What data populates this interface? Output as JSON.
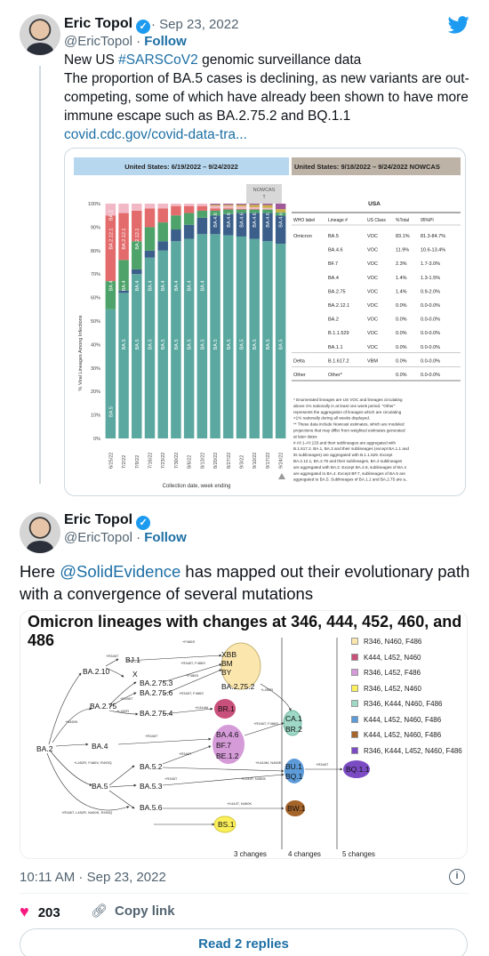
{
  "tweet1": {
    "author": "Eric Topol",
    "date": "Sep 23, 2022",
    "handle": "@EricTopol",
    "follow": "Follow",
    "line1_pre": "New US ",
    "hashtag": "#SARSCoV2",
    "line1_post": " genomic surveillance data",
    "body": "The proportion of BA.5 cases is declining, as new variants are out-competing, some of which have already been shown to have more immune escape such as BA.2.75.2 and BQ.1.1",
    "link": "covid.cdc.gov/covid-data-tra..."
  },
  "card": {
    "left_header": "United States: 6/19/2022 – 9/24/2022",
    "right_header": "United States: 9/18/2022 – 9/24/2022 NOWCAS",
    "nowcast": "NOWCAS\nT",
    "ylabel": "% Viral Lineages Among Infections",
    "xlabel": "Collection date, week ending",
    "table_title": "USA",
    "columns": [
      "WHO label",
      "Lineage #",
      "US Class",
      "%Total",
      "95%PI"
    ],
    "rows": [
      [
        "Omicron",
        "BA.5",
        "VOC",
        "83.1%",
        "81.3-84.7%"
      ],
      [
        "",
        "BA.4.6",
        "VOC",
        "11.9%",
        "10.6-13.4%"
      ],
      [
        "",
        "BF.7",
        "VOC",
        "2.3%",
        "1.7-3.0%"
      ],
      [
        "",
        "BA.4",
        "VOC",
        "1.4%",
        "1.3-1.5%"
      ],
      [
        "",
        "BA.2.75",
        "VOC",
        "1.4%",
        "0.9-2.0%"
      ],
      [
        "",
        "BA.2.12.1",
        "VOC",
        "0.0%",
        "0.0-0.0%"
      ],
      [
        "",
        "BA.2",
        "VOC",
        "0.0%",
        "0.0-0.0%"
      ],
      [
        "",
        "B.1.1.529",
        "VOC",
        "0.0%",
        "0.0-0.0%"
      ],
      [
        "",
        "BA.1.1",
        "VOC",
        "0.0%",
        "0.0-0.0%"
      ],
      [
        "Delta",
        "B.1.617.2",
        "VBM",
        "0.0%",
        "0.0-0.0%"
      ],
      [
        "Other",
        "Other*",
        "",
        "0.0%",
        "0.0-0.0%"
      ]
    ],
    "footnotes": [
      "*    Enumerated lineages are US VOC and lineages circulating",
      "above 1% nationally in at least one week period. \"Other\"",
      "represents the aggregation of lineages which are circulating",
      "<1% nationally during all weeks displayed.",
      "**   These data include Nowcast estimates, which are modeled",
      "projections that may differ from weighted estimates generated",
      "at later dates",
      "#    AY.1-AY.133 and their sublineages are aggregated with",
      "B.1.617.2. BA.1, BA.3 and their sublineages (except BA.1.1 and",
      "its sublineages) are aggregated with B.1.1.529. Except",
      "BA.2.12.1, BA.2.75 and their sublineages, BA.2 sublineages",
      "are aggregated with BA.2. Except BA.4.6, sublineages of BA.4",
      "are aggregated to BA.4. Except BF.7, sublineages of BA.5 are",
      "aggregated to BA.5. Sublineages of BA.1.1 and BA.2.75 are a.."
    ]
  },
  "chart_data": {
    "type": "bar",
    "title": "",
    "xlabel": "Collection date, week ending",
    "ylabel": "% Viral Lineages Among Infections",
    "ylim": [
      0,
      100
    ],
    "yticks": [
      "0%",
      "10%",
      "20%",
      "30%",
      "40%",
      "50%",
      "60%",
      "70%",
      "80%",
      "90%",
      "100%"
    ],
    "categories": [
      "6/25/22",
      "7/2/22",
      "7/9/22",
      "7/16/22",
      "7/23/22",
      "7/30/22",
      "8/6/22",
      "8/13/22",
      "8/20/22",
      "8/27/22",
      "9/3/22",
      "9/10/22",
      "9/17/22",
      "9/24/22"
    ],
    "series": [
      {
        "name": "BA.5",
        "color": "#5ba8a0",
        "values": [
          55,
          62,
          70,
          77,
          80,
          84,
          85,
          87,
          87,
          87,
          86,
          85,
          84,
          83
        ]
      },
      {
        "name": "BA.4.6",
        "color": "#3b5f8a",
        "values": [
          0,
          1,
          2,
          3,
          4,
          5,
          6,
          7,
          8,
          9,
          10,
          11,
          12,
          12
        ]
      },
      {
        "name": "BA.4",
        "color": "#4ea36a",
        "values": [
          12,
          13,
          12,
          10,
          8,
          6,
          5,
          3,
          2,
          2,
          1.5,
          1.5,
          1.5,
          1.4
        ]
      },
      {
        "name": "BA.2.12.1",
        "color": "#e36b6b",
        "values": [
          28,
          20,
          13,
          8,
          6,
          4,
          3,
          2,
          1,
          0.5,
          0.3,
          0.2,
          0.1,
          0
        ]
      },
      {
        "name": "BA.2",
        "color": "#f2b8c6",
        "values": [
          5,
          4,
          3,
          2,
          2,
          1,
          1,
          1,
          1,
          1,
          1,
          0.8,
          0.6,
          0
        ]
      },
      {
        "name": "BA.2.75",
        "color": "#c9b04a",
        "values": [
          0,
          0,
          0,
          0,
          0,
          0,
          0,
          0,
          0.5,
          0.5,
          0.7,
          1,
          1.2,
          1.4
        ]
      },
      {
        "name": "BF.7",
        "color": "#a05a9a",
        "values": [
          0,
          0,
          0,
          0,
          0,
          0,
          0,
          0,
          0.5,
          0.5,
          0.5,
          0.5,
          0.6,
          2.3
        ]
      }
    ],
    "bar_labels": [
      [
        "BA.5",
        "BA.4",
        "BA.2.12.1",
        "BA.2"
      ],
      [
        "BA.5",
        "BA.4",
        "BA.2.12.1"
      ],
      [
        "BA.5",
        "BA.4",
        "BA.2.12.1"
      ],
      [
        "BA.5",
        "BA.4"
      ],
      [
        "BA.5",
        "BA.4"
      ],
      [
        "BA.5",
        "BA.4"
      ],
      [
        "BA.5",
        "BA.4"
      ],
      [
        "BA.5",
        "BA.4"
      ],
      [
        "BA.5",
        "BA.4.6"
      ],
      [
        "BA.5",
        "BA.4.6"
      ],
      [
        "BA.5",
        "BA.4.6"
      ],
      [
        "BA.5",
        "BA.4.6"
      ],
      [
        "BA.5",
        "BA.4.6"
      ],
      [
        "BA.5",
        "BA.4.6"
      ]
    ]
  },
  "tweet2": {
    "author": "Eric Topol",
    "handle": "@EricTopol",
    "follow": "Follow",
    "text_pre": "Here ",
    "mention": "@SolidEvidence",
    "text_post": " has mapped out their evolutionary path with a convergence of several mutations"
  },
  "lineage_diagram": {
    "title": "Omicron lineages with changes at 346, 444, 452, 460, and 486",
    "legend": [
      {
        "label": "R346, N460, F486",
        "color": "#fbe6ad"
      },
      {
        "label": "K444, L452, N460",
        "color": "#c9507a"
      },
      {
        "label": "R346, L452, F486",
        "color": "#d59ad8"
      },
      {
        "label": "R346, L452, N460",
        "color": "#fbf05a"
      },
      {
        "label": "R346, K444, N460, F486",
        "color": "#9fd8c6"
      },
      {
        "label": "K444, L452, N460, F486",
        "color": "#5c9bd8"
      },
      {
        "label": "K444, L452, N460, F486",
        "color": "#a5642a"
      },
      {
        "label": "R346, K444, L452, N460, F486",
        "color": "#7a4bc2"
      }
    ],
    "nodes": [
      "BA.2",
      "BA.2.10",
      "BJ.1",
      "X",
      "BA.2.75",
      "BA.2.75.3",
      "BA.2.75.6",
      "BA.2.75.4",
      "BA.2.75.2",
      "XBB",
      "BM",
      "BY",
      "BR.1",
      "BA.4",
      "BA.4.6",
      "BF.7",
      "BE.1.2",
      "BA.5",
      "BA.5.2",
      "BA.5.3",
      "BA.5.6",
      "BS.1",
      "CA.1",
      "BR.2",
      "BU.1",
      "BQ.1",
      "BQ.1.1",
      "BW.1"
    ],
    "mutation_labels": [
      "+R346T",
      "+F486S",
      "+R346T, F486S",
      "+F486S",
      "+R346T, F486S",
      "+R346T",
      "+L452R",
      "+K444M",
      "+L452R",
      "+N460K",
      "+R346T",
      "+L452R, F486V, R493Q",
      "+R346T, F486S",
      "+R346T",
      "+R346T",
      "+K444M, N460K",
      "+K444T, N460K",
      "+R346T",
      "+R346T, L452R, N460K, R493Q",
      "+K444T, N460K"
    ],
    "columns": [
      "3 changes",
      "4 changes",
      "5 changes"
    ]
  },
  "footer": {
    "time": "10:11 AM · Sep 23, 2022",
    "likes": "203",
    "copy_link": "Copy link",
    "read_replies": "Read 2 replies"
  }
}
